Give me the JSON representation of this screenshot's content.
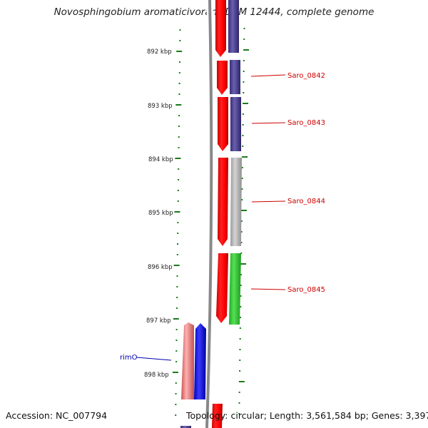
{
  "title": "Novosphingobium aromaticivorans DSM 12444, complete genome",
  "footer": {
    "accession": "Accession: NC_007794",
    "summary": "Topology: circular; Length: 3,561,584 bp; Genes: 3,397"
  },
  "scale_labels": [
    "892 kbp",
    "893 kbp",
    "894 kbp",
    "895 kbp",
    "896 kbp",
    "897 kbp",
    "898 kbp"
  ],
  "gene_labels": [
    {
      "name": "Saro_0842",
      "color": "#cc0000"
    },
    {
      "name": "Saro_0843",
      "color": "#cc0000"
    },
    {
      "name": "Saro_0844",
      "color": "#cc0000"
    },
    {
      "name": "Saro_0845",
      "color": "#cc0000"
    },
    {
      "name": "rimO",
      "color": "#0000aa"
    }
  ],
  "colors": {
    "backbone": "#888888",
    "ticks": "#1a7a1a",
    "cds_forward": "#ff0000",
    "cds_reverse": "#4a3f8f",
    "trna_or_other": "#b0b0b0",
    "green_feature": "#33cc33",
    "pink_feature": "#e88a8a",
    "blue_feature": "#0000ff"
  }
}
